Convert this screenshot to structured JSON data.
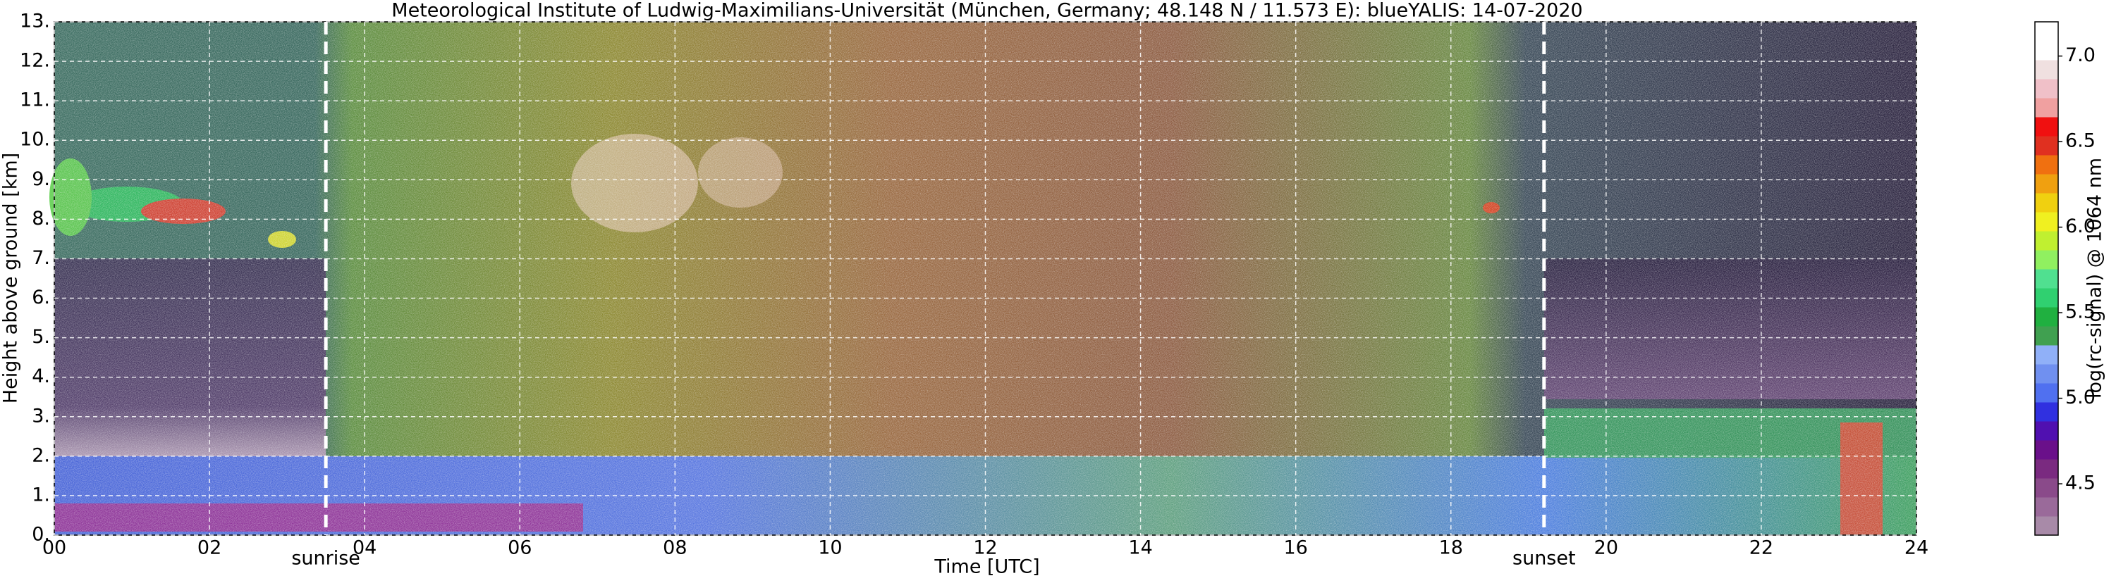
{
  "chart_data": {
    "type": "heatmap",
    "title": "Meteorological Institute of Ludwig-Maximilians-Universität (München, Germany; 48.148 N / 11.573 E):    blueYALIS: 14-07-2020",
    "xlabel": "Time [UTC]",
    "ylabel": "Height above ground [km]",
    "xlim": [
      0,
      24
    ],
    "xticks": [
      {
        "value": 0,
        "label": "00"
      },
      {
        "value": 2,
        "label": "02"
      },
      {
        "value": 4,
        "label": "04"
      },
      {
        "value": 6,
        "label": "06"
      },
      {
        "value": 8,
        "label": "08"
      },
      10,
      12,
      14,
      16,
      18,
      20,
      22,
      24
    ],
    "ylim": [
      0,
      13
    ],
    "yticks": [
      {
        "value": 0,
        "label": "0."
      },
      {
        "value": 1,
        "label": "1."
      },
      {
        "value": 2,
        "label": "2."
      },
      {
        "value": 3,
        "label": "3."
      },
      {
        "value": 4,
        "label": "4."
      },
      {
        "value": 5,
        "label": "5."
      },
      {
        "value": 6,
        "label": "6."
      },
      {
        "value": 7,
        "label": "7."
      },
      {
        "value": 8,
        "label": "8."
      },
      {
        "value": 9,
        "label": "9."
      },
      {
        "value": 10,
        "label": "10."
      },
      {
        "value": 11,
        "label": "11."
      },
      {
        "value": 12,
        "label": "12."
      },
      {
        "value": 13,
        "label": "13."
      }
    ],
    "grid": true,
    "annotations": [
      {
        "text": "sunrise",
        "x": 3.5
      },
      {
        "text": "sunset",
        "x": 19.2
      }
    ],
    "colorbar": {
      "label": "log(rc-signal) @ 1064 nm",
      "clim": [
        4.2,
        7.2
      ],
      "ticks": [
        4.5,
        {
          "value": 5,
          "label": "5.0"
        },
        5.5,
        {
          "value": 6,
          "label": "6.0"
        },
        6.5,
        {
          "value": 7,
          "label": "7.0"
        }
      ],
      "colors": [
        "#a88aa8",
        "#9a6a9a",
        "#8a4a8a",
        "#7a2a80",
        "#6a108a",
        "#5010b0",
        "#3030e0",
        "#5070f0",
        "#7090f0",
        "#90b0f8",
        "#40a050",
        "#20b040",
        "#30d070",
        "#50e090",
        "#90f060",
        "#c0f030",
        "#f0f020",
        "#f0d010",
        "#f0a010",
        "#f07010",
        "#e03020",
        "#f01010",
        "#f0a0a0",
        "#f0c0c8",
        "#f0e0e0",
        "#ffffff",
        "#ffffff"
      ]
    }
  }
}
